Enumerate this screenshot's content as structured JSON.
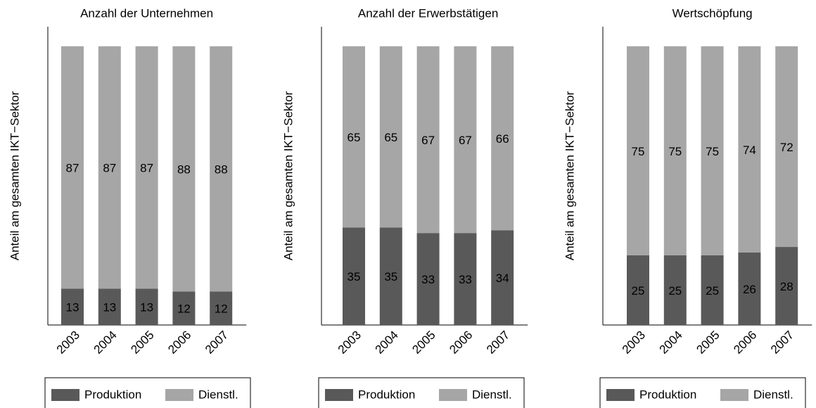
{
  "chart_data": [
    {
      "type": "bar",
      "stacked": true,
      "title": "Anzahl der Unternehmen",
      "y_label": "Anteil am gesamten IKT−Sektor",
      "categories": [
        "2003",
        "2004",
        "2005",
        "2006",
        "2007"
      ],
      "ylim": [
        0,
        107
      ],
      "series": [
        {
          "name": "Produktion",
          "color": "#595959",
          "values": [
            13,
            13,
            13,
            12,
            12
          ]
        },
        {
          "name": "Dienstl.",
          "color": "#a6a6a6",
          "values": [
            87,
            87,
            87,
            88,
            88
          ]
        }
      ]
    },
    {
      "type": "bar",
      "stacked": true,
      "title": "Anzahl der Erwerbstätigen",
      "y_label": "Anteil am gesamten IKT−Sektor",
      "categories": [
        "2003",
        "2004",
        "2005",
        "2006",
        "2007"
      ],
      "ylim": [
        0,
        107
      ],
      "series": [
        {
          "name": "Produktion",
          "color": "#595959",
          "values": [
            35,
            35,
            33,
            33,
            34
          ]
        },
        {
          "name": "Dienstl.",
          "color": "#a6a6a6",
          "values": [
            65,
            65,
            67,
            67,
            66
          ]
        }
      ]
    },
    {
      "type": "bar",
      "stacked": true,
      "title": "Wertschöpfung",
      "y_label": "Anteil am gesamten IKT−Sektor",
      "categories": [
        "2003",
        "2004",
        "2005",
        "2006",
        "2007"
      ],
      "ylim": [
        0,
        107
      ],
      "series": [
        {
          "name": "Produktion",
          "color": "#595959",
          "values": [
            25,
            25,
            25,
            26,
            28
          ]
        },
        {
          "name": "Dienstl.",
          "color": "#a6a6a6",
          "values": [
            75,
            75,
            75,
            74,
            72
          ]
        }
      ]
    }
  ]
}
